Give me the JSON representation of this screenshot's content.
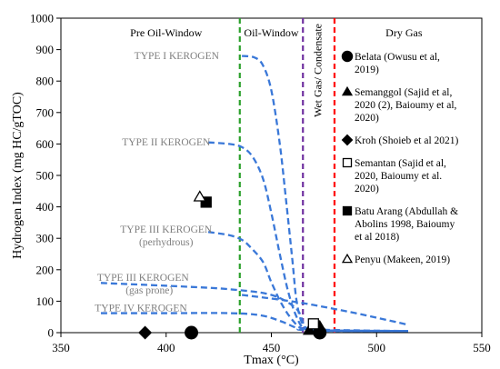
{
  "chart_data": {
    "type": "scatter",
    "xlabel": "Tmax (°C)",
    "ylabel": "Hydrogen Index (mg HC/gTOC)",
    "xlim": [
      350,
      550
    ],
    "ylim": [
      0,
      1000
    ],
    "xticks": [
      "350",
      "400",
      "450",
      "500",
      "550"
    ],
    "yticks": [
      "0",
      "100",
      "200",
      "300",
      "400",
      "500",
      "600",
      "700",
      "800",
      "900",
      "1000"
    ],
    "grid": false,
    "legend_position": "right",
    "zones": [
      {
        "label": "Pre Oil-Window",
        "x": 400
      },
      {
        "label": "Oil-Window",
        "x": 450
      },
      {
        "label": "Wet Gas/ Condensate",
        "x": 472
      },
      {
        "label": "Dry Gas",
        "x": 513
      }
    ],
    "boundaries": [
      {
        "x": 435,
        "color": "#2ca02c"
      },
      {
        "x": 465,
        "color": "#7030a0"
      },
      {
        "x": 480,
        "color": "#ff0000"
      }
    ],
    "kerogen_curves": [
      {
        "label": "TYPE I KEROGEN",
        "label_x": 405,
        "label_y": 870,
        "points": [
          [
            436,
            880
          ],
          [
            442,
            875
          ],
          [
            446,
            850
          ],
          [
            450,
            770
          ],
          [
            454,
            600
          ],
          [
            457,
            420
          ],
          [
            460,
            230
          ],
          [
            462,
            100
          ],
          [
            465,
            25
          ],
          [
            470,
            8
          ],
          [
            490,
            5
          ],
          [
            515,
            5
          ]
        ]
      },
      {
        "label": "TYPE II KEROGEN",
        "label_x": 400,
        "label_y": 595,
        "points": [
          [
            420,
            605
          ],
          [
            430,
            600
          ],
          [
            436,
            590
          ],
          [
            441,
            560
          ],
          [
            446,
            490
          ],
          [
            450,
            380
          ],
          [
            454,
            250
          ],
          [
            458,
            130
          ],
          [
            462,
            50
          ],
          [
            466,
            12
          ],
          [
            475,
            6
          ],
          [
            515,
            5
          ]
        ]
      },
      {
        "label": "TYPE III KEROGEN",
        "label_x": 400,
        "label_y": 318,
        "points": [
          [
            420,
            320
          ],
          [
            430,
            310
          ],
          [
            436,
            295
          ],
          [
            440,
            272
          ],
          [
            446,
            225
          ],
          [
            450,
            160
          ],
          [
            455,
            90
          ],
          [
            460,
            40
          ],
          [
            465,
            12
          ],
          [
            475,
            6
          ],
          [
            515,
            5
          ]
        ]
      },
      {
        "label": "TYPE III KEROGEN",
        "label_x": 389,
        "label_y": 165,
        "points": [
          [
            369,
            158
          ],
          [
            390,
            152
          ],
          [
            410,
            146
          ],
          [
            430,
            138
          ],
          [
            450,
            120
          ],
          [
            462,
            75
          ],
          [
            466,
            20
          ],
          [
            472,
            10
          ],
          [
            515,
            5
          ]
        ]
      },
      {
        "label": "TYPE IV KEROGEN",
        "label_x": 388,
        "label_y": 68,
        "points": [
          [
            369,
            62
          ],
          [
            400,
            62
          ],
          [
            430,
            62
          ],
          [
            445,
            55
          ],
          [
            455,
            35
          ],
          [
            462,
            15
          ],
          [
            468,
            8
          ],
          [
            515,
            5
          ]
        ]
      },
      {
        "label": "",
        "label_x": 0,
        "label_y": 0,
        "points": [
          [
            436,
            120
          ],
          [
            455,
            104
          ],
          [
            470,
            88
          ],
          [
            490,
            62
          ],
          [
            505,
            40
          ],
          [
            515,
            25
          ]
        ]
      }
    ],
    "kerogen_sublabels": [
      {
        "text": "(perhydrous)",
        "x": 400,
        "y": 278
      },
      {
        "text": "(gas prone)",
        "x": 392,
        "y": 125
      }
    ],
    "series": [
      {
        "name": "Belata (Owusu et al, 2019)",
        "marker": "circle-filled",
        "points": [
          [
            412,
            0
          ],
          [
            473,
            0
          ]
        ]
      },
      {
        "name": "Semanggol (Sajid et al, 2020 (2), Baioumy et al, 2020)",
        "marker": "triangle-filled",
        "points": [
          [
            468,
            8
          ],
          [
            473,
            20
          ]
        ]
      },
      {
        "name": "Kroh (Shoieb et al 2021)",
        "marker": "diamond-filled",
        "points": [
          [
            390,
            0
          ]
        ]
      },
      {
        "name": "Semantan (Sajid et al, 2020, Baioumy et al. 2020)",
        "marker": "square-open",
        "points": [
          [
            470,
            28
          ]
        ]
      },
      {
        "name": "Batu Arang (Abdullah & Abolins 1998, Baioumy et al 2018)",
        "marker": "square-filled",
        "points": [
          [
            419,
            415
          ]
        ]
      },
      {
        "name": "Penyu (Makeen, 2019)",
        "marker": "triangle-open",
        "points": [
          [
            416,
            432
          ]
        ]
      }
    ],
    "legend_items": [
      {
        "marker": "circle-filled",
        "lines": [
          "Belata (Owusu et al,",
          "2019)"
        ]
      },
      {
        "marker": "triangle-filled",
        "lines": [
          "Semanggol (Sajid et al,",
          "2020 (2), Baioumy et al,",
          "2020)"
        ]
      },
      {
        "marker": "diamond-filled",
        "lines": [
          "Kroh (Shoieb et al 2021)"
        ]
      },
      {
        "marker": "square-open",
        "lines": [
          "Semantan (Sajid et al,",
          "2020, Baioumy et al.",
          "2020)"
        ]
      },
      {
        "marker": "square-filled",
        "lines": [
          "Batu Arang (Abdullah &",
          "Abolins 1998, Baioumy",
          "et al 2018)"
        ]
      },
      {
        "marker": "triangle-open",
        "lines": [
          "Penyu (Makeen, 2019)"
        ]
      }
    ],
    "colors": {
      "curve": "#3a78d8",
      "kerogen_label": "#7f7f7f"
    }
  }
}
